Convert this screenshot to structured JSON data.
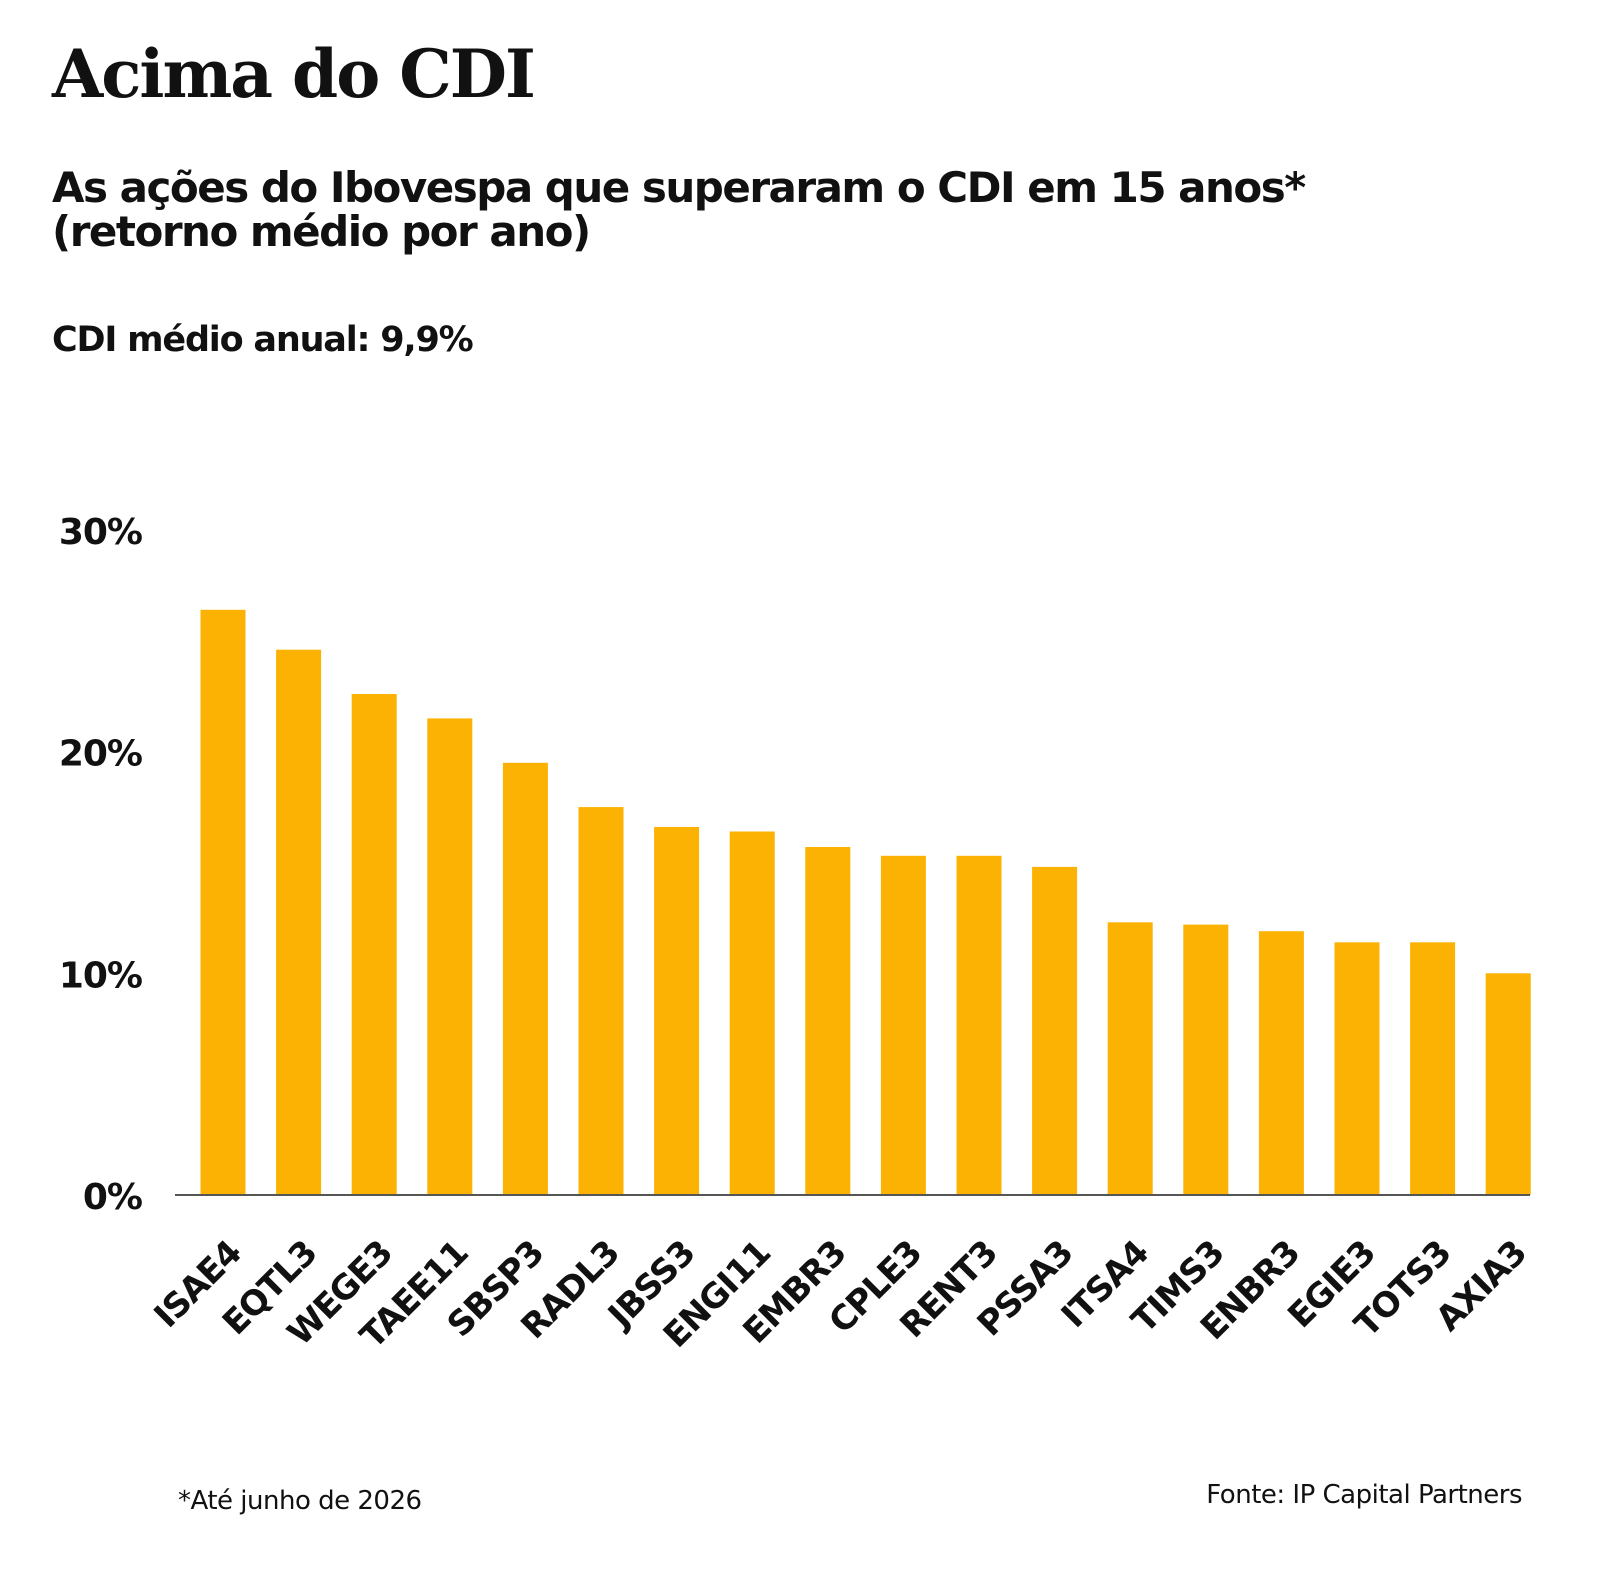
{
  "header": {
    "title": "Acima do CDI",
    "subtitle_line1": "As ações do Ibovespa que superaram o CDI em 15 anos*",
    "subtitle_line2": "(retorno médio por ano)",
    "cdi_note": "CDI médio anual: 9,9%"
  },
  "footer": {
    "footnote": "*Até junho de 2026",
    "source": "Fonte: IP Capital Partners"
  },
  "colors": {
    "bar": "#FBB202",
    "axis": "#555555",
    "text": "#111111"
  },
  "chart_data": {
    "type": "bar",
    "title": "",
    "xlabel": "",
    "ylabel": "",
    "ylim": [
      0,
      30
    ],
    "y_ticks": [
      0,
      10,
      20,
      30
    ],
    "y_tick_labels": [
      "0%",
      "10%",
      "20%",
      "30%"
    ],
    "grid": false,
    "categories": [
      "ISAE4",
      "EQTL3",
      "WEGE3",
      "TAEE11",
      "SBSP3",
      "RADL3",
      "JBSS3",
      "ENGI11",
      "EMBR3",
      "CPLE3",
      "RENT3",
      "PSSA3",
      "ITSA4",
      "TIMS3",
      "ENBR3",
      "EGIE3",
      "TOTS3",
      "AXIA3"
    ],
    "values": [
      26.4,
      24.6,
      22.6,
      21.5,
      19.5,
      17.5,
      16.6,
      16.4,
      15.7,
      15.3,
      15.3,
      14.8,
      12.3,
      12.2,
      11.9,
      11.4,
      11.4,
      10.0
    ]
  }
}
